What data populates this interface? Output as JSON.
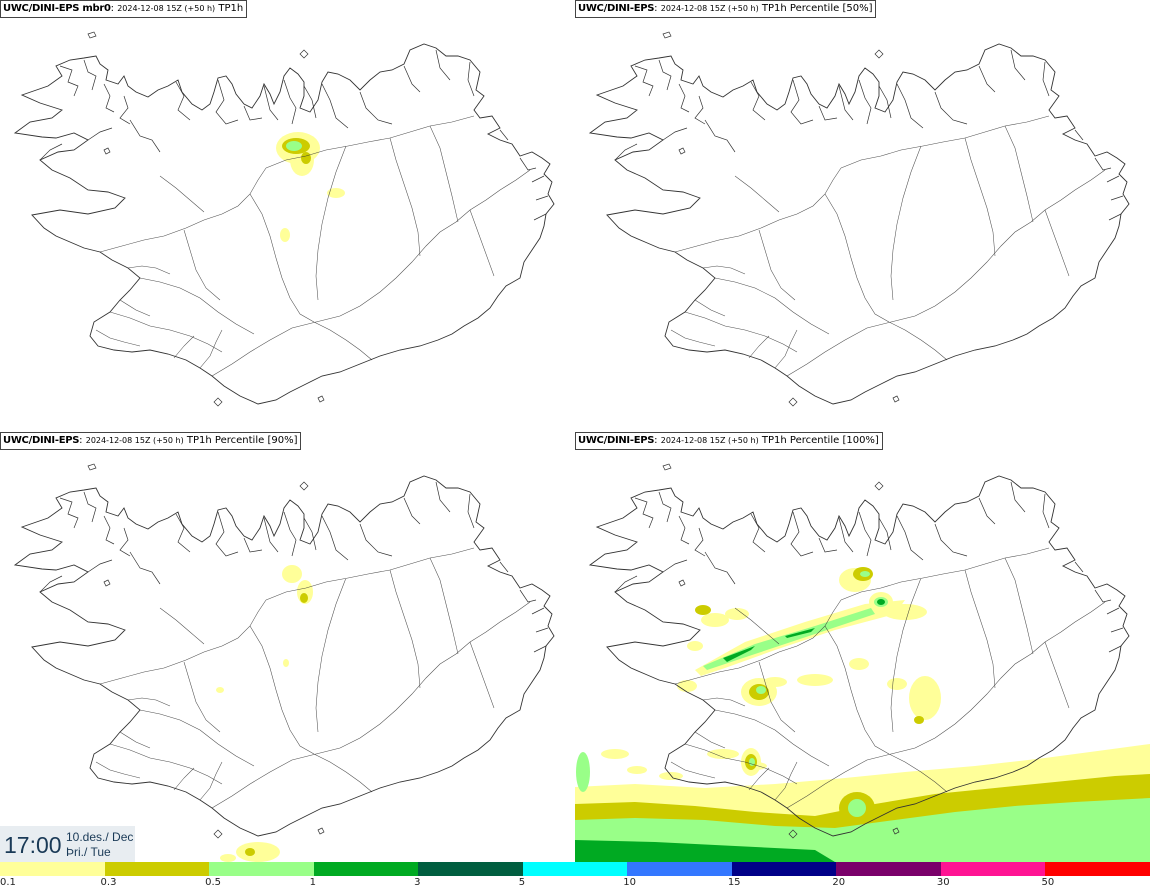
{
  "panels": [
    {
      "model": "UWC/DINI-EPS mbr0",
      "meta": "2024-12-08 15Z (+50 h)",
      "param": "TP1h"
    },
    {
      "model": "UWC/DINI-EPS",
      "meta": "2024-12-08 15Z (+50 h)",
      "param": "TP1h Percentile [50%]"
    },
    {
      "model": "UWC/DINI-EPS",
      "meta": "2024-12-08 15Z (+50 h)",
      "param": "TP1h Percentile [90%]"
    },
    {
      "model": "UWC/DINI-EPS",
      "meta": "2024-12-08 15Z (+50 h)",
      "param": "TP1h Percentile [100%]"
    }
  ],
  "valid_time": {
    "time": "17:00",
    "date_line1": "10.des./ Dec",
    "date_line2": "Þri./ Tue"
  },
  "legend": {
    "ticks": [
      "0.1",
      "0.3",
      "0.5",
      "1",
      "3",
      "5",
      "10",
      "15",
      "20",
      "30",
      "50"
    ],
    "colors": [
      "#ffff99",
      "#cccc00",
      "#99ff88",
      "#00aa22",
      "#005e40",
      "#00ffff",
      "#3377ff",
      "#000088",
      "#7a006a",
      "#ff1493",
      "#ff0000"
    ]
  },
  "colors": {
    "outline": "#333333",
    "panel_border": "#444444",
    "timebox_bg": "#e8edf1",
    "timebox_text": "#1a3a57"
  }
}
